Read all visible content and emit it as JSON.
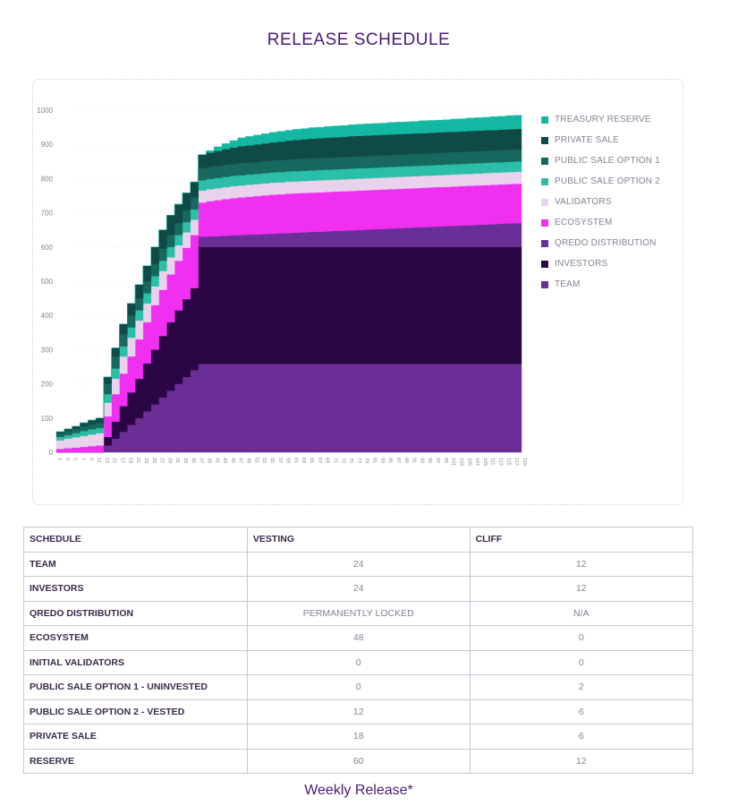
{
  "title": "RELEASE SCHEDULE",
  "footer": "Weekly Release*",
  "chart_data": {
    "type": "area",
    "stacked": true,
    "ylim": [
      0,
      1000
    ],
    "yticks": [
      0,
      100,
      200,
      300,
      400,
      500,
      600,
      700,
      800,
      900,
      1000
    ],
    "x": [
      1,
      3,
      5,
      7,
      9,
      11,
      13,
      15,
      17,
      19,
      21,
      23,
      25,
      27,
      29,
      31,
      33,
      35,
      37,
      39,
      41,
      43,
      45,
      47,
      49,
      51,
      53,
      55,
      57,
      59,
      61,
      63,
      65,
      67,
      69,
      71,
      73,
      75,
      77,
      79,
      81,
      83,
      85,
      87,
      89,
      91,
      93,
      95,
      97,
      99,
      101,
      103,
      105,
      107,
      109,
      111,
      113,
      115,
      117,
      119
    ],
    "grid": true,
    "legend_position": "right",
    "series": [
      {
        "name": "TEAM",
        "color": "#6b2d96",
        "values": [
          0,
          0,
          0,
          0,
          0,
          0,
          20,
          40,
          60,
          80,
          100,
          120,
          140,
          160,
          180,
          200,
          220,
          240,
          258,
          258,
          258,
          258,
          258,
          258,
          258,
          258,
          258,
          258,
          258,
          258,
          258,
          258,
          258,
          258,
          258,
          258,
          258,
          258,
          258,
          258,
          258,
          258,
          258,
          258,
          258,
          258,
          258,
          258,
          258,
          258,
          258,
          258,
          258,
          258,
          258,
          258,
          258,
          258,
          258,
          258
        ]
      },
      {
        "name": "INVESTORS",
        "color": "#2a0645",
        "values": [
          0,
          0,
          0,
          0,
          0,
          0,
          25,
          50,
          75,
          95,
          115,
          140,
          160,
          180,
          200,
          215,
          228,
          240,
          342,
          342,
          342,
          342,
          342,
          342,
          342,
          342,
          342,
          342,
          342,
          342,
          342,
          342,
          342,
          342,
          342,
          342,
          342,
          342,
          342,
          342,
          342,
          342,
          342,
          342,
          342,
          342,
          342,
          342,
          342,
          342,
          342,
          342,
          342,
          342,
          342,
          342,
          342,
          342,
          342,
          342
        ]
      },
      {
        "name": "QREDO DISTRIBUTION",
        "color": "#6a2e99",
        "values": [
          0,
          0,
          0,
          0,
          0,
          0,
          0,
          0,
          0,
          0,
          0,
          0,
          0,
          0,
          0,
          0,
          0,
          0,
          30,
          31,
          32,
          33,
          34,
          35,
          36,
          37,
          38,
          39,
          40,
          41,
          42,
          43,
          44,
          45,
          46,
          47,
          48,
          49,
          50,
          51,
          52,
          53,
          54,
          55,
          56,
          57,
          58,
          59,
          60,
          61,
          62,
          63,
          64,
          65,
          66,
          67,
          68,
          69,
          70,
          71
        ]
      },
      {
        "name": "ECOSYSTEM",
        "color": "#f02ff0",
        "values": [
          10,
          12,
          14,
          16,
          18,
          20,
          60,
          80,
          95,
          105,
          115,
          120,
          130,
          135,
          140,
          145,
          150,
          155,
          100,
          103,
          105,
          107,
          109,
          110,
          111,
          112,
          113,
          114,
          114,
          115,
          115,
          115,
          115,
          115,
          115,
          115,
          115,
          115,
          115,
          115,
          115,
          115,
          115,
          115,
          115,
          115,
          115,
          115,
          115,
          115,
          115,
          115,
          115,
          115,
          115,
          115,
          115,
          115,
          115,
          115
        ]
      },
      {
        "name": "VALIDATORS",
        "color": "#e8d2ec",
        "values": [
          25,
          28,
          30,
          32,
          34,
          36,
          40,
          45,
          50,
          55,
          55,
          55,
          55,
          55,
          50,
          45,
          45,
          45,
          35,
          35,
          35,
          35,
          35,
          35,
          35,
          35,
          35,
          35,
          35,
          35,
          35,
          35,
          35,
          35,
          35,
          35,
          35,
          35,
          35,
          35,
          35,
          35,
          35,
          35,
          35,
          35,
          35,
          35,
          35,
          35,
          35,
          35,
          35,
          35,
          35,
          35,
          35,
          35,
          35,
          35
        ]
      },
      {
        "name": "PUBLIC SALE OPTION 2",
        "color": "#2bbfa8",
        "values": [
          10,
          10,
          12,
          14,
          15,
          15,
          25,
          30,
          30,
          30,
          30,
          30,
          30,
          30,
          30,
          30,
          30,
          30,
          30,
          30,
          30,
          30,
          30,
          30,
          30,
          30,
          30,
          30,
          30,
          30,
          30,
          30,
          30,
          30,
          30,
          30,
          30,
          30,
          30,
          30,
          30,
          30,
          30,
          30,
          30,
          30,
          30,
          30,
          30,
          30,
          30,
          30,
          30,
          30,
          30,
          30,
          30,
          30,
          30,
          30
        ]
      },
      {
        "name": "PUBLIC SALE OPTION 1",
        "color": "#17685e",
        "values": [
          10,
          12,
          12,
          14,
          15,
          15,
          30,
          35,
          35,
          35,
          35,
          35,
          35,
          35,
          35,
          35,
          35,
          35,
          35,
          35,
          35,
          35,
          35,
          35,
          35,
          35,
          35,
          35,
          35,
          35,
          35,
          35,
          35,
          35,
          35,
          35,
          35,
          35,
          35,
          35,
          35,
          35,
          35,
          35,
          35,
          35,
          35,
          35,
          35,
          35,
          35,
          35,
          35,
          35,
          35,
          35,
          35,
          35,
          35,
          35
        ]
      },
      {
        "name": "PRIVATE SALE",
        "color": "#0f4a46",
        "values": [
          5,
          6,
          8,
          10,
          12,
          14,
          20,
          25,
          30,
          35,
          40,
          45,
          50,
          55,
          58,
          55,
          50,
          45,
          40,
          42,
          44,
          46,
          48,
          50,
          50,
          51,
          52,
          53,
          54,
          55,
          56,
          57,
          58,
          58,
          59,
          59,
          59,
          60,
          60,
          60,
          60,
          60,
          60,
          60,
          60,
          60,
          60,
          60,
          60,
          60,
          60,
          60,
          60,
          60,
          60,
          60,
          60,
          60,
          60,
          60
        ]
      },
      {
        "name": "TREASURY RESERVE",
        "color": "#14b8a2",
        "values": [
          0,
          0,
          0,
          0,
          0,
          0,
          0,
          0,
          0,
          0,
          0,
          0,
          0,
          0,
          0,
          0,
          0,
          0,
          0,
          6,
          12,
          16,
          20,
          24,
          26,
          27,
          28,
          29,
          30,
          30,
          31,
          31,
          32,
          32,
          32,
          33,
          33,
          33,
          34,
          34,
          34,
          34,
          35,
          35,
          35,
          35,
          36,
          36,
          36,
          36,
          37,
          37,
          38,
          38,
          38,
          39,
          39,
          40,
          40,
          40
        ]
      }
    ]
  },
  "legend": [
    {
      "label": "TREASURY RESERVE",
      "color": "#14b8a2"
    },
    {
      "label": "PRIVATE SALE",
      "color": "#0f4a46"
    },
    {
      "label": "PUBLIC SALE OPTION 1",
      "color": "#17685e"
    },
    {
      "label": "PUBLIC SALE OPTION 2",
      "color": "#2bbfa8"
    },
    {
      "label": "VALIDATORS",
      "color": "#e8d2ec"
    },
    {
      "label": "ECOSYSTEM",
      "color": "#f02ff0"
    },
    {
      "label": "QREDO DISTRIBUTION",
      "color": "#6a2e99"
    },
    {
      "label": "INVESTORS",
      "color": "#2a0645"
    },
    {
      "label": "TEAM",
      "color": "#6b2d96"
    }
  ],
  "table": {
    "headers": [
      "SCHEDULE",
      "VESTING",
      "CLIFF"
    ],
    "rows": [
      {
        "name": "TEAM",
        "vesting": "24",
        "cliff": "12"
      },
      {
        "name": "INVESTORS",
        "vesting": "24",
        "cliff": "12"
      },
      {
        "name": "QREDO DISTRIBUTION",
        "vesting": "PERMANENTLY LOCKED",
        "cliff": "N/A"
      },
      {
        "name": "ECOSYSTEM",
        "vesting": "48",
        "cliff": "0"
      },
      {
        "name": "INITIAL VALIDATORS",
        "vesting": "0",
        "cliff": "0"
      },
      {
        "name": "PUBLIC SALE OPTION  1 - UNINVESTED",
        "vesting": "0",
        "cliff": "2"
      },
      {
        "name": "PUBLIC SALE OPTION 2 - VESTED",
        "vesting": "12",
        "cliff": "6"
      },
      {
        "name": "PRIVATE SALE",
        "vesting": "18",
        "cliff": "6"
      },
      {
        "name": "RESERVE",
        "vesting": "60",
        "cliff": "12"
      }
    ]
  }
}
